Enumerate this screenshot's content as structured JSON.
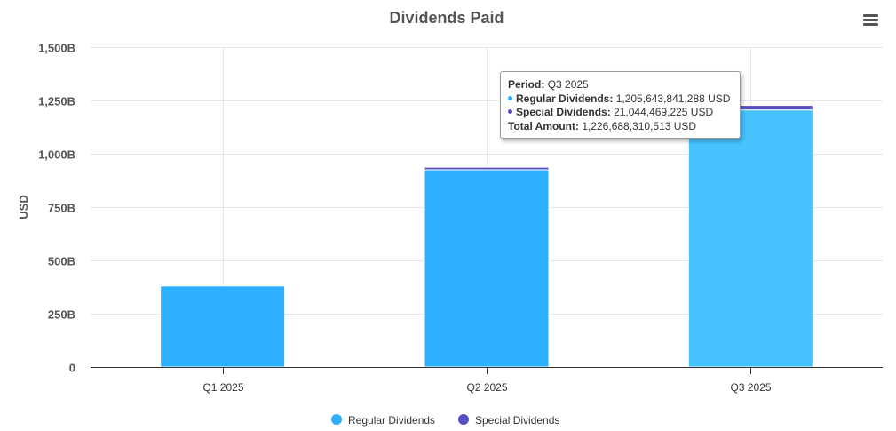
{
  "chart_data": {
    "type": "bar",
    "stacked": true,
    "title": "Dividends Paid",
    "xlabel": "",
    "ylabel": "USD",
    "ylim": [
      0,
      1500
    ],
    "yticks": [
      0,
      250,
      500,
      750,
      1000,
      1250,
      1500
    ],
    "ytick_labels": [
      "0",
      "250B",
      "500B",
      "750B",
      "1,000B",
      "1,250B",
      "1,500B"
    ],
    "categories": [
      "Q1 2025",
      "Q2 2025",
      "Q3 2025"
    ],
    "series": [
      {
        "name": "Regular Dividends",
        "color": "#2caffe",
        "values": [
          380,
          925,
          1205.64
        ]
      },
      {
        "name": "Special Dividends",
        "color": "#544fc5",
        "values": [
          0,
          12,
          21.04
        ]
      }
    ],
    "highlight_color": "#46c3ff",
    "highlighted_category": "Q3 2025",
    "legend_position": "bottom"
  },
  "tooltip": {
    "period_label": "Period:",
    "period_value": "Q3 2025",
    "regular_label": "Regular Dividends:",
    "regular_value": "1,205,643,841,288 USD",
    "special_label": "Special Dividends:",
    "special_value": "21,044,469,225 USD",
    "total_label": "Total Amount:",
    "total_value": "1,226,688,310,513 USD"
  },
  "menu": {
    "icon": "hamburger-menu-icon"
  }
}
